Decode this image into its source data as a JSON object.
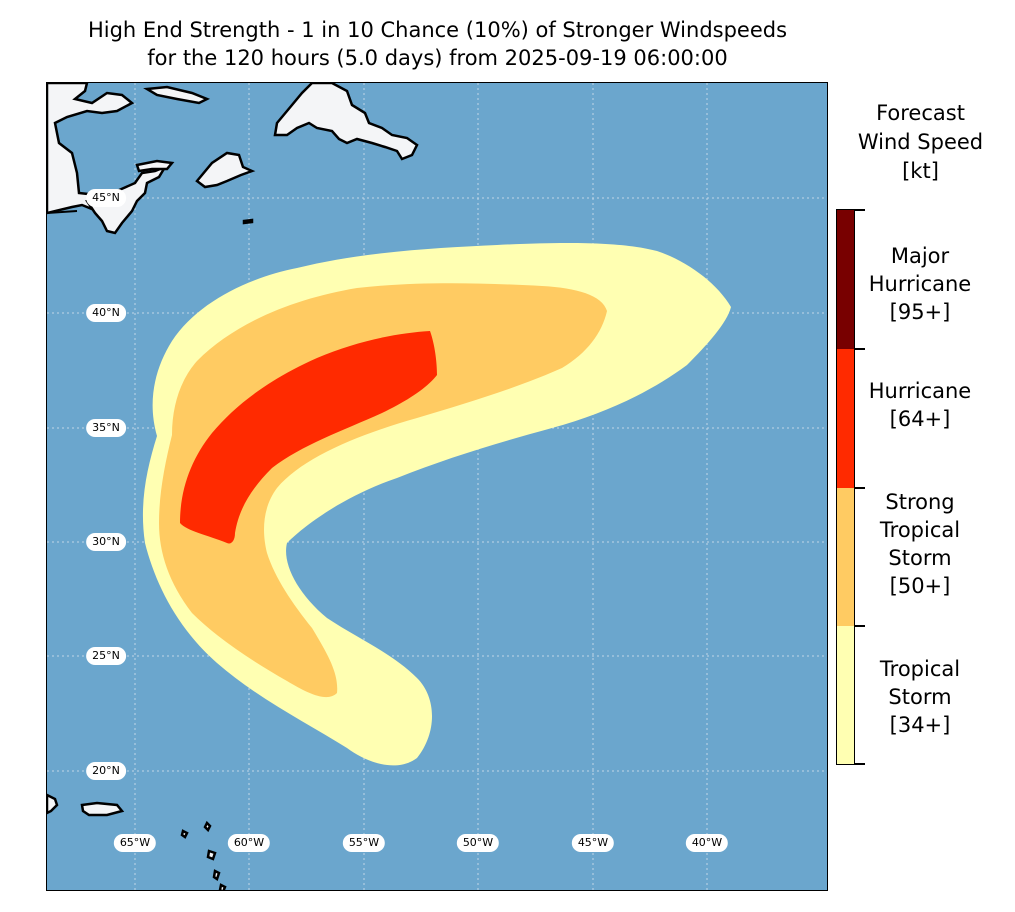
{
  "title": {
    "line1": "High End Strength - 1 in 10 Chance (10%) of Stronger Windspeeds",
    "line2": "for the 120 hours (5.0 days) from 2025-09-19 06:00:00"
  },
  "map": {
    "ocean_color": "#6ba6cd",
    "land_color": "#f4f5f7",
    "lat_labels": [
      "45°N",
      "40°N",
      "35°N",
      "30°N",
      "25°N",
      "20°N"
    ],
    "lon_labels": [
      "65°W",
      "60°W",
      "55°W",
      "50°W",
      "45°W",
      "40°W"
    ]
  },
  "colorbar": {
    "title_lines": [
      "Forecast",
      "Wind Speed",
      "[kt]"
    ],
    "categories": [
      {
        "lines": [
          "Major",
          "Hurricane",
          "[95+]"
        ],
        "color": "#780000"
      },
      {
        "lines": [
          "Hurricane",
          "[64+]"
        ],
        "color": "#ff2a00"
      },
      {
        "lines": [
          "Strong",
          "Tropical",
          "Storm",
          "[50+]"
        ],
        "color": "#ffcb62"
      },
      {
        "lines": [
          "Tropical",
          "Storm",
          "[34+]"
        ],
        "color": "#ffffb2"
      }
    ]
  }
}
